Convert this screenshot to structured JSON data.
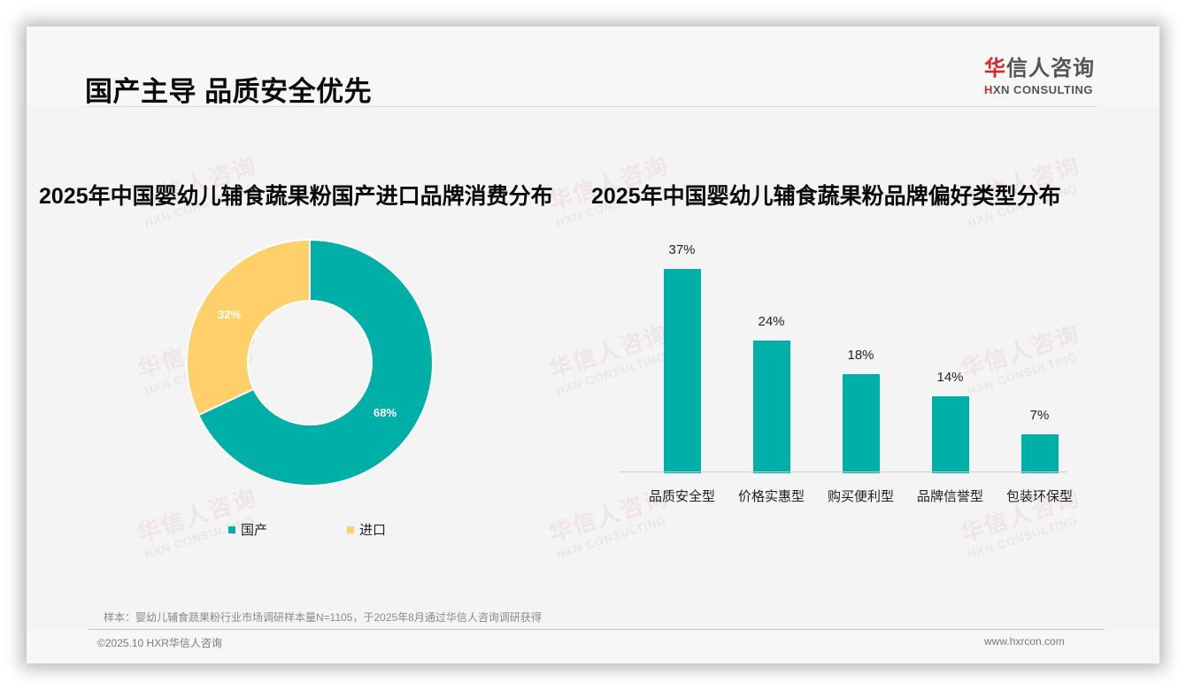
{
  "header": {
    "title": "国产主导 品质安全优先",
    "logo": {
      "cn_accent": "华",
      "cn_rest": "信人咨询",
      "en_accent": "H",
      "en_rest": "XN CONSULTING"
    }
  },
  "watermark": {
    "cn": "华信人咨询",
    "en": "HXN CONSULTING"
  },
  "colors": {
    "teal": "#00b0a8",
    "yellow": "#fdd06a",
    "title_red": "#d62a2a"
  },
  "left_chart": {
    "title": "2025年中国婴幼儿辅食蔬果粉国产进口品牌消费分布",
    "labels": {
      "domestic": "68%",
      "imported": "32%"
    },
    "legend": [
      {
        "label": "国产",
        "color": "#00b0a8"
      },
      {
        "label": "进口",
        "color": "#fdd06a"
      }
    ]
  },
  "right_chart": {
    "title": "2025年中国婴幼儿辅食蔬果粉品牌偏好类型分布",
    "bars": [
      {
        "category": "品质安全型",
        "value_label": "37%"
      },
      {
        "category": "价格实惠型",
        "value_label": "24%"
      },
      {
        "category": "购买便利型",
        "value_label": "18%"
      },
      {
        "category": "品牌信誉型",
        "value_label": "14%"
      },
      {
        "category": "包装环保型",
        "value_label": "7%"
      }
    ]
  },
  "footer": {
    "source_note": "样本：婴幼儿辅食蔬果粉行业市场调研样本量N=1105，于2025年8月通过华信人咨询调研获得",
    "copyright": "©2025.10 HXR华信人咨询",
    "website": "www.hxrcon.com"
  },
  "chart_data": [
    {
      "type": "pie",
      "title": "2025年中国婴幼儿辅食蔬果粉国产进口品牌消费分布",
      "categories": [
        "国产",
        "进口"
      ],
      "values": [
        68,
        32
      ],
      "unit": "%",
      "donut": true,
      "colors": [
        "#00b0a8",
        "#fdd06a"
      ],
      "legend_position": "bottom"
    },
    {
      "type": "bar",
      "title": "2025年中国婴幼儿辅食蔬果粉品牌偏好类型分布",
      "categories": [
        "品质安全型",
        "价格实惠型",
        "购买便利型",
        "品牌信誉型",
        "包装环保型"
      ],
      "values": [
        37,
        24,
        18,
        14,
        7
      ],
      "unit": "%",
      "xlabel": "",
      "ylabel": "",
      "ylim": [
        0,
        40
      ],
      "grid": false,
      "data_labels": true,
      "color": "#00b0a8"
    }
  ]
}
